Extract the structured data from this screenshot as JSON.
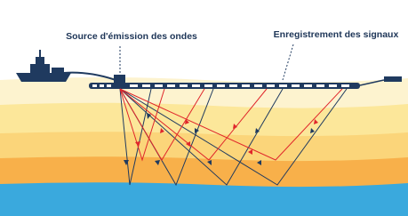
{
  "labels": {
    "source": "Source d'émission des ondes",
    "recording": "Enregistrement des signaux"
  }
}
